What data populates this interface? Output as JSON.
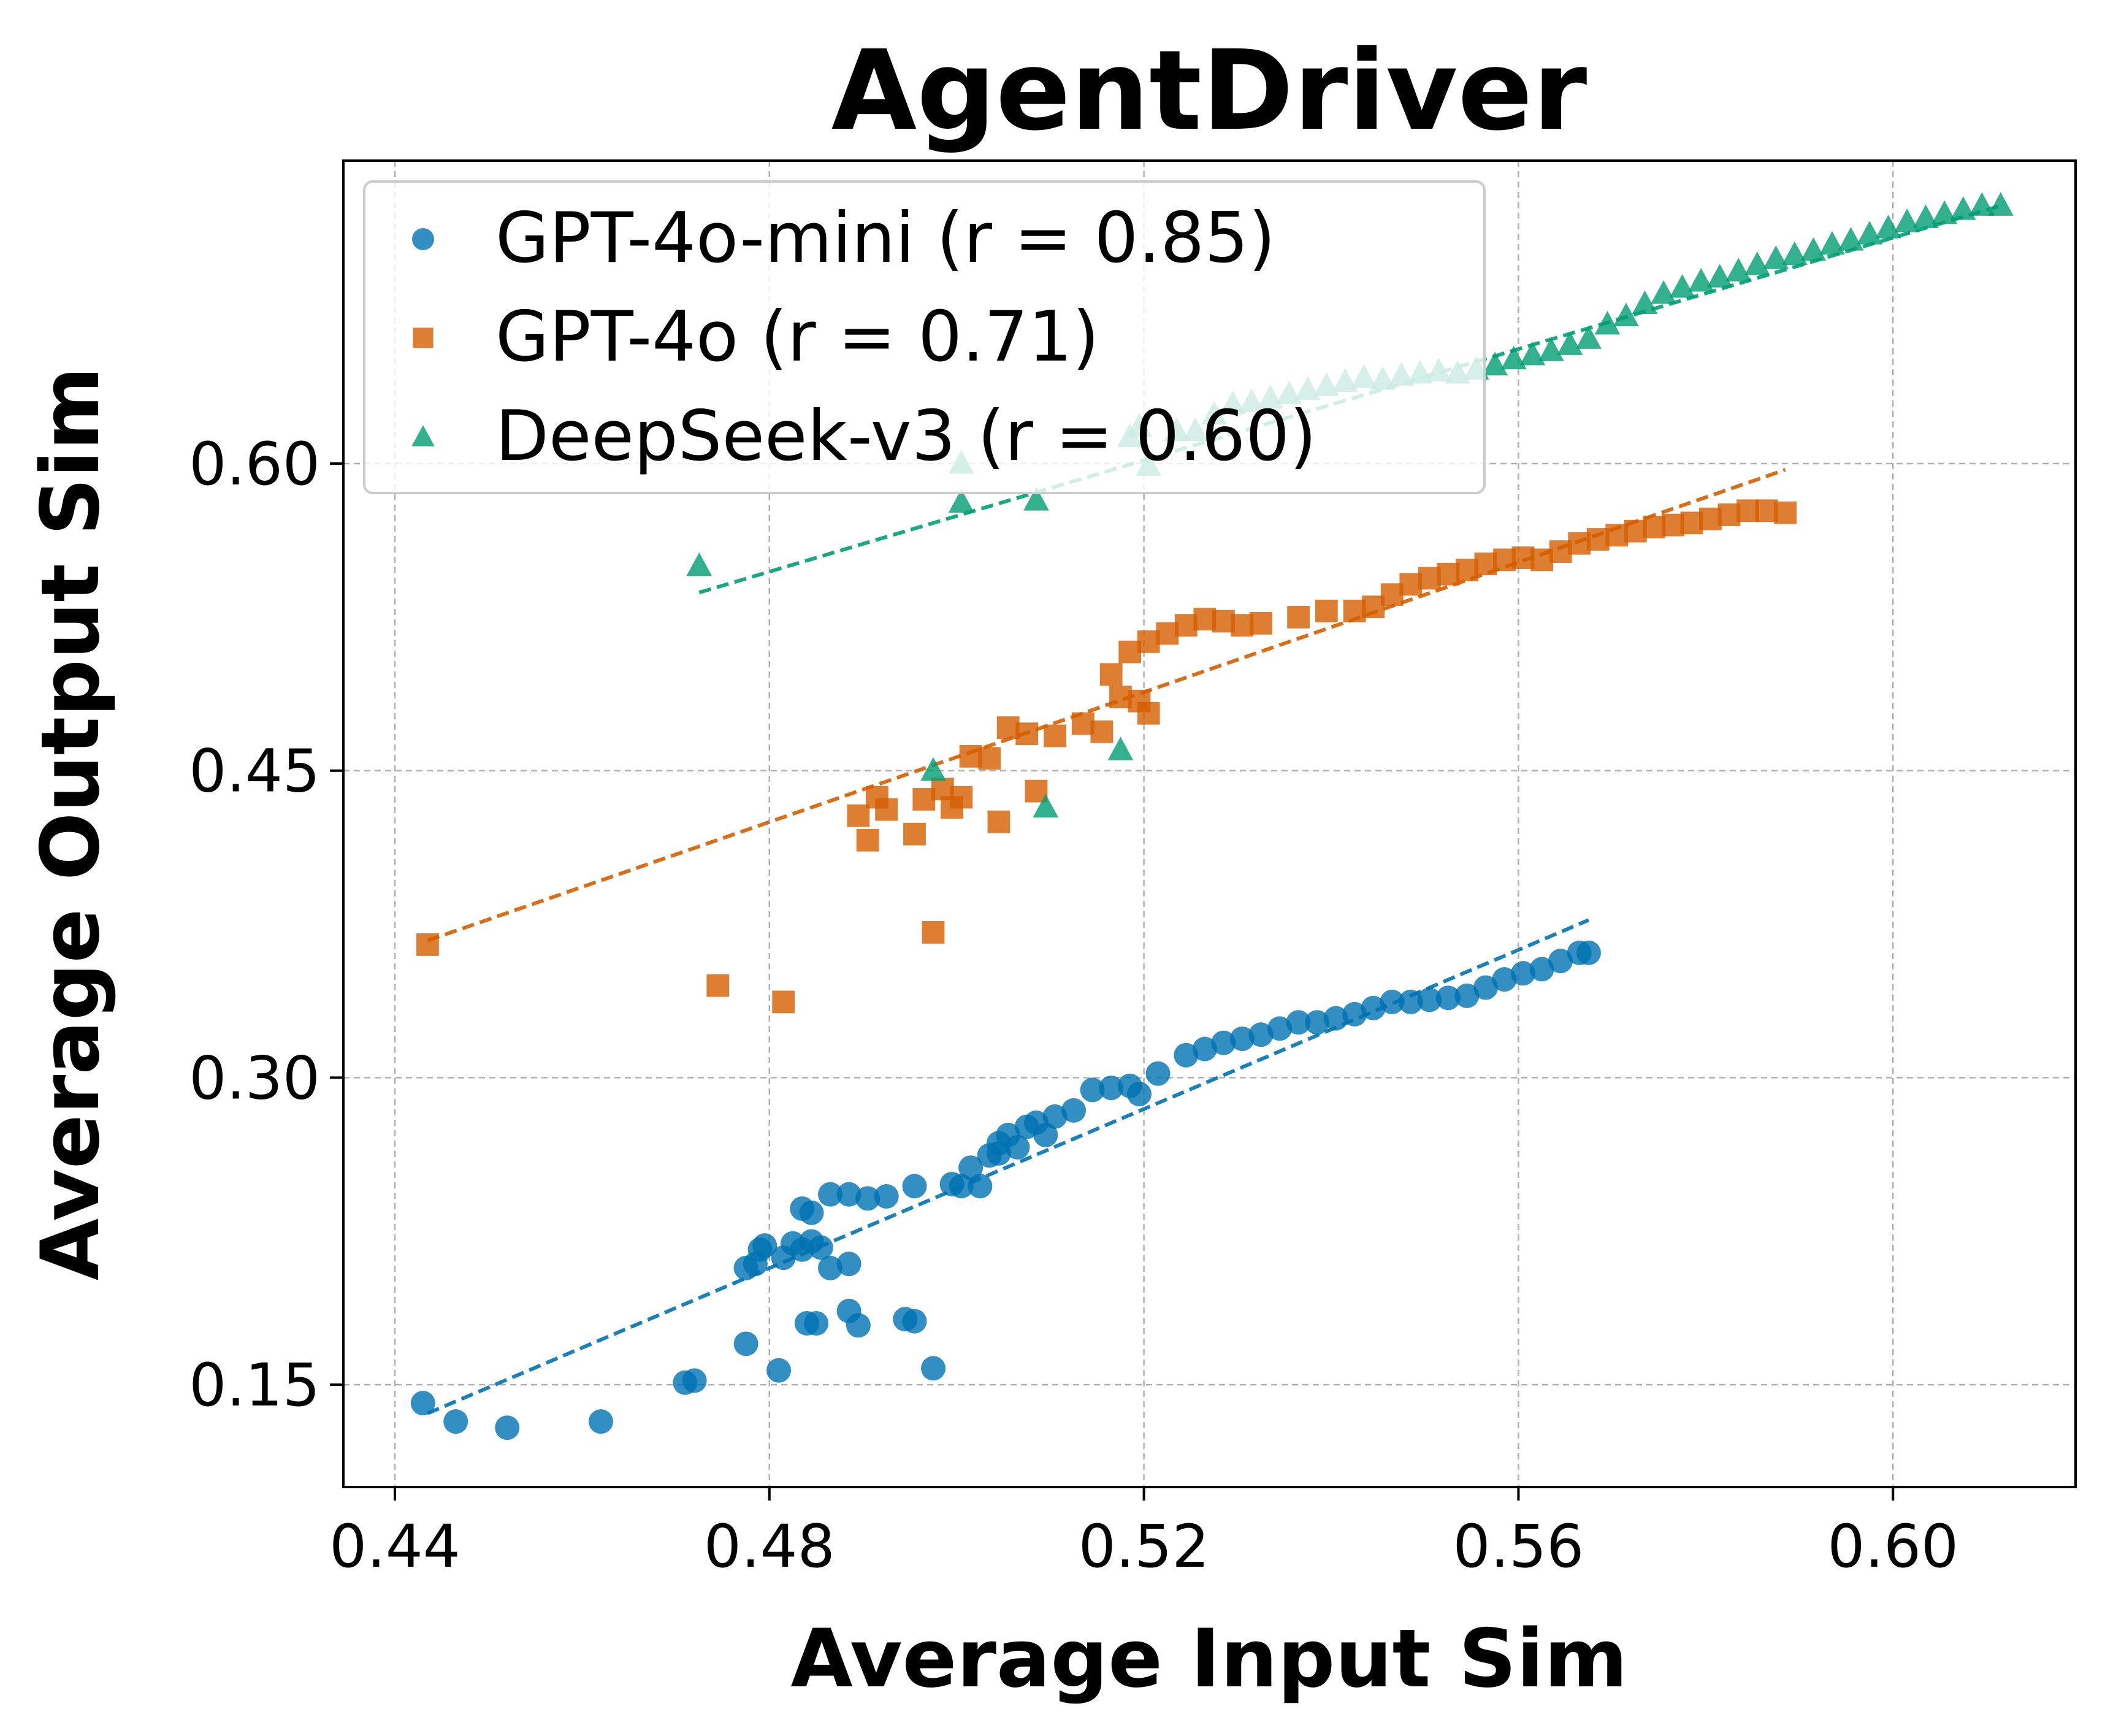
{
  "chart_data": {
    "type": "scatter",
    "title": "AgentDriver",
    "xlabel": "Average Input Sim",
    "ylabel": "Average Output Sim",
    "xlim": [
      0.4345,
      0.6195
    ],
    "ylim": [
      0.1,
      0.748
    ],
    "xticks": [
      {
        "value": 0.44,
        "label": "0.44"
      },
      {
        "value": 0.48,
        "label": "0.48"
      },
      {
        "value": 0.52,
        "label": "0.52"
      },
      {
        "value": 0.56,
        "label": "0.56"
      },
      {
        "value": 0.6,
        "label": "0.60"
      }
    ],
    "yticks": [
      {
        "value": 0.15,
        "label": "0.15"
      },
      {
        "value": 0.3,
        "label": "0.30"
      },
      {
        "value": 0.45,
        "label": "0.45"
      },
      {
        "value": 0.6,
        "label": "0.60"
      }
    ],
    "grid": true,
    "legend_position": "top-left",
    "series": [
      {
        "name": "GPT-4o-mini",
        "legend_label": "GPT-4o-mini (r = 0.85)",
        "r": 0.85,
        "color": "#0072B2",
        "marker": "circle",
        "fit_line": [
          [
            0.4435,
            0.136
          ],
          [
            0.5675,
            0.377
          ]
        ],
        "points": [
          [
            0.443,
            0.141
          ],
          [
            0.4465,
            0.132
          ],
          [
            0.452,
            0.129
          ],
          [
            0.462,
            0.132
          ],
          [
            0.471,
            0.151
          ],
          [
            0.472,
            0.152
          ],
          [
            0.4775,
            0.17
          ],
          [
            0.481,
            0.157
          ],
          [
            0.484,
            0.18
          ],
          [
            0.485,
            0.18
          ],
          [
            0.4885,
            0.186
          ],
          [
            0.4895,
            0.179
          ],
          [
            0.4945,
            0.182
          ],
          [
            0.4955,
            0.181
          ],
          [
            0.4975,
            0.158
          ],
          [
            0.4775,
            0.207
          ],
          [
            0.4785,
            0.209
          ],
          [
            0.479,
            0.216
          ],
          [
            0.4795,
            0.218
          ],
          [
            0.4815,
            0.212
          ],
          [
            0.4825,
            0.219
          ],
          [
            0.4835,
            0.216
          ],
          [
            0.4845,
            0.22
          ],
          [
            0.4855,
            0.217
          ],
          [
            0.4865,
            0.207
          ],
          [
            0.4885,
            0.209
          ],
          [
            0.4835,
            0.236
          ],
          [
            0.4845,
            0.234
          ],
          [
            0.4865,
            0.243
          ],
          [
            0.4885,
            0.243
          ],
          [
            0.4905,
            0.241
          ],
          [
            0.4925,
            0.242
          ],
          [
            0.4955,
            0.247
          ],
          [
            0.4995,
            0.248
          ],
          [
            0.5005,
            0.247
          ],
          [
            0.5015,
            0.256
          ],
          [
            0.5025,
            0.247
          ],
          [
            0.5035,
            0.262
          ],
          [
            0.5045,
            0.263
          ],
          [
            0.5045,
            0.268
          ],
          [
            0.5055,
            0.272
          ],
          [
            0.5065,
            0.266
          ],
          [
            0.5075,
            0.276
          ],
          [
            0.5085,
            0.278
          ],
          [
            0.5095,
            0.272
          ],
          [
            0.5105,
            0.281
          ],
          [
            0.5125,
            0.284
          ],
          [
            0.5145,
            0.294
          ],
          [
            0.5165,
            0.295
          ],
          [
            0.5185,
            0.296
          ],
          [
            0.5195,
            0.292
          ],
          [
            0.5215,
            0.302
          ],
          [
            0.5245,
            0.311
          ],
          [
            0.5265,
            0.314
          ],
          [
            0.5285,
            0.317
          ],
          [
            0.5305,
            0.319
          ],
          [
            0.5325,
            0.321
          ],
          [
            0.5345,
            0.324
          ],
          [
            0.5365,
            0.327
          ],
          [
            0.5385,
            0.327
          ],
          [
            0.5405,
            0.329
          ],
          [
            0.5425,
            0.331
          ],
          [
            0.5445,
            0.334
          ],
          [
            0.5465,
            0.337
          ],
          [
            0.5485,
            0.337
          ],
          [
            0.5505,
            0.338
          ],
          [
            0.5525,
            0.339
          ],
          [
            0.5545,
            0.34
          ],
          [
            0.5565,
            0.344
          ],
          [
            0.5585,
            0.348
          ],
          [
            0.5605,
            0.351
          ],
          [
            0.5625,
            0.353
          ],
          [
            0.5645,
            0.357
          ],
          [
            0.5665,
            0.361
          ],
          [
            0.5675,
            0.361
          ]
        ]
      },
      {
        "name": "GPT-4o",
        "legend_label": "GPT-4o (r = 0.71)",
        "r": 0.71,
        "color": "#D55E00",
        "marker": "square",
        "fit_line": [
          [
            0.4435,
            0.367
          ],
          [
            0.5885,
            0.597
          ]
        ],
        "points": [
          [
            0.4435,
            0.365
          ],
          [
            0.4745,
            0.345
          ],
          [
            0.4815,
            0.337
          ],
          [
            0.4975,
            0.371
          ],
          [
            0.4895,
            0.428
          ],
          [
            0.4905,
            0.416
          ],
          [
            0.4915,
            0.437
          ],
          [
            0.4925,
            0.431
          ],
          [
            0.4955,
            0.419
          ],
          [
            0.4965,
            0.436
          ],
          [
            0.4985,
            0.441
          ],
          [
            0.4995,
            0.432
          ],
          [
            0.5005,
            0.437
          ],
          [
            0.5015,
            0.457
          ],
          [
            0.5035,
            0.456
          ],
          [
            0.5045,
            0.425
          ],
          [
            0.5055,
            0.471
          ],
          [
            0.5075,
            0.468
          ],
          [
            0.5085,
            0.44
          ],
          [
            0.5105,
            0.467
          ],
          [
            0.5135,
            0.473
          ],
          [
            0.5155,
            0.469
          ],
          [
            0.5165,
            0.497
          ],
          [
            0.5175,
            0.486
          ],
          [
            0.5195,
            0.484
          ],
          [
            0.5205,
            0.478
          ],
          [
            0.5185,
            0.508
          ],
          [
            0.5205,
            0.513
          ],
          [
            0.5225,
            0.517
          ],
          [
            0.5245,
            0.521
          ],
          [
            0.5265,
            0.524
          ],
          [
            0.5285,
            0.523
          ],
          [
            0.5305,
            0.521
          ],
          [
            0.5325,
            0.522
          ],
          [
            0.5365,
            0.525
          ],
          [
            0.5395,
            0.528
          ],
          [
            0.5425,
            0.528
          ],
          [
            0.5445,
            0.53
          ],
          [
            0.5465,
            0.536
          ],
          [
            0.5485,
            0.541
          ],
          [
            0.5505,
            0.544
          ],
          [
            0.5525,
            0.546
          ],
          [
            0.5545,
            0.548
          ],
          [
            0.5565,
            0.551
          ],
          [
            0.5585,
            0.553
          ],
          [
            0.5605,
            0.554
          ],
          [
            0.5625,
            0.553
          ],
          [
            0.5645,
            0.557
          ],
          [
            0.5665,
            0.561
          ],
          [
            0.5685,
            0.563
          ],
          [
            0.5705,
            0.565
          ],
          [
            0.5725,
            0.567
          ],
          [
            0.5745,
            0.569
          ],
          [
            0.5765,
            0.57
          ],
          [
            0.5785,
            0.571
          ],
          [
            0.5805,
            0.573
          ],
          [
            0.5825,
            0.575
          ],
          [
            0.5845,
            0.577
          ],
          [
            0.5865,
            0.577
          ],
          [
            0.5885,
            0.576
          ]
        ]
      },
      {
        "name": "DeepSeek-v3",
        "legend_label": "DeepSeek-v3 (r = 0.60)",
        "r": 0.6,
        "color": "#009E73",
        "marker": "triangle",
        "fit_line": [
          [
            0.4725,
            0.537
          ],
          [
            0.6115,
            0.726
          ]
        ],
        "points": [
          [
            0.4725,
            0.55
          ],
          [
            0.4975,
            0.45
          ],
          [
            0.5005,
            0.581
          ],
          [
            0.5005,
            0.6
          ],
          [
            0.5085,
            0.582
          ],
          [
            0.5095,
            0.432
          ],
          [
            0.5175,
            0.46
          ],
          [
            0.5185,
            0.613
          ],
          [
            0.5195,
            0.618
          ],
          [
            0.5205,
            0.599
          ],
          [
            0.5235,
            0.616
          ],
          [
            0.5255,
            0.616
          ],
          [
            0.5275,
            0.624
          ],
          [
            0.5295,
            0.629
          ],
          [
            0.5315,
            0.63
          ],
          [
            0.5335,
            0.632
          ],
          [
            0.5355,
            0.634
          ],
          [
            0.5375,
            0.636
          ],
          [
            0.5395,
            0.638
          ],
          [
            0.5415,
            0.64
          ],
          [
            0.5435,
            0.642
          ],
          [
            0.5455,
            0.641
          ],
          [
            0.5475,
            0.643
          ],
          [
            0.5495,
            0.644
          ],
          [
            0.5515,
            0.645
          ],
          [
            0.5535,
            0.644
          ],
          [
            0.5555,
            0.646
          ],
          [
            0.5575,
            0.648
          ],
          [
            0.5595,
            0.651
          ],
          [
            0.5615,
            0.653
          ],
          [
            0.5635,
            0.655
          ],
          [
            0.5655,
            0.658
          ],
          [
            0.5675,
            0.661
          ],
          [
            0.5695,
            0.668
          ],
          [
            0.5715,
            0.672
          ],
          [
            0.5735,
            0.678
          ],
          [
            0.5755,
            0.683
          ],
          [
            0.5775,
            0.686
          ],
          [
            0.5795,
            0.689
          ],
          [
            0.5815,
            0.691
          ],
          [
            0.5835,
            0.694
          ],
          [
            0.5855,
            0.697
          ],
          [
            0.5875,
            0.7
          ],
          [
            0.5895,
            0.702
          ],
          [
            0.5915,
            0.704
          ],
          [
            0.5935,
            0.707
          ],
          [
            0.5955,
            0.709
          ],
          [
            0.5975,
            0.712
          ],
          [
            0.5995,
            0.715
          ],
          [
            0.6015,
            0.718
          ],
          [
            0.6035,
            0.72
          ],
          [
            0.6055,
            0.722
          ],
          [
            0.6075,
            0.724
          ],
          [
            0.6095,
            0.726
          ],
          [
            0.6115,
            0.726
          ]
        ]
      }
    ]
  }
}
